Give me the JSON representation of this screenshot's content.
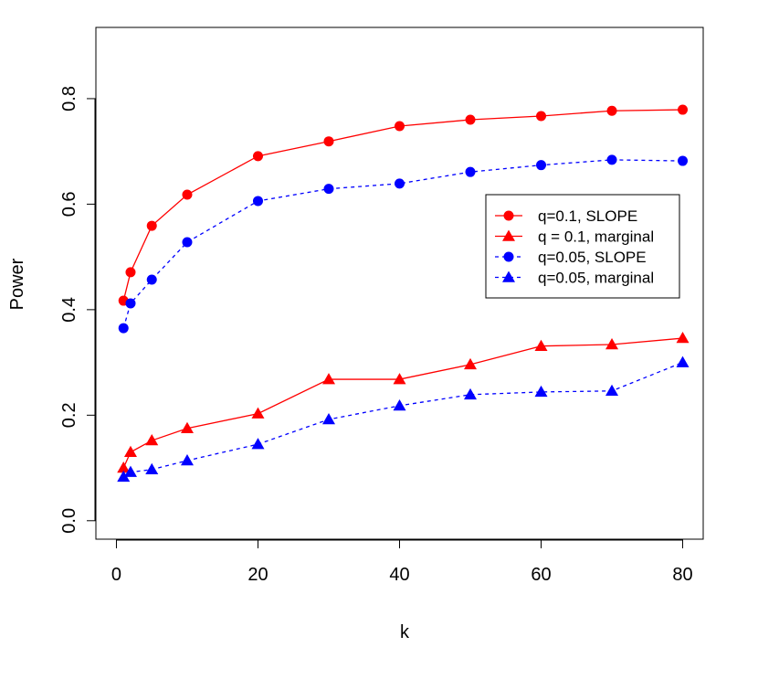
{
  "chart_data": {
    "type": "line",
    "title": "",
    "xlabel": "k",
    "ylabel": "Power",
    "xlim": [
      -2.9,
      82.9
    ],
    "ylim": [
      -0.035,
      0.935
    ],
    "xticks": [
      0,
      20,
      40,
      60,
      80
    ],
    "xtick_labels": [
      "0",
      "20",
      "40",
      "60",
      "80"
    ],
    "yticks": [
      0.0,
      0.2,
      0.4,
      0.6,
      0.8
    ],
    "ytick_labels": [
      "0.0",
      "0.2",
      "0.4",
      "0.6",
      "0.8"
    ],
    "grid": false,
    "legend_position": "right",
    "x": [
      1,
      2,
      5,
      10,
      20,
      30,
      40,
      50,
      60,
      70,
      80
    ],
    "series": [
      {
        "name": "q=0.1, SLOPE",
        "color": "#ff0000",
        "marker": "circle",
        "dash": "solid",
        "values": [
          0.417,
          0.471,
          0.559,
          0.618,
          0.691,
          0.719,
          0.748,
          0.76,
          0.767,
          0.777,
          0.779
        ]
      },
      {
        "name": "q = 0.1, marginal",
        "color": "#ff0000",
        "marker": "triangle",
        "dash": "solid",
        "values": [
          0.1,
          0.13,
          0.152,
          0.175,
          0.203,
          0.268,
          0.268,
          0.296,
          0.331,
          0.334,
          0.346
        ]
      },
      {
        "name": "q=0.05, SLOPE",
        "color": "#0000ff",
        "marker": "circle",
        "dash": "dashed",
        "values": [
          0.365,
          0.412,
          0.457,
          0.528,
          0.606,
          0.629,
          0.639,
          0.661,
          0.674,
          0.684,
          0.682
        ]
      },
      {
        "name": "q=0.05, marginal",
        "color": "#0000ff",
        "marker": "triangle",
        "dash": "dashed",
        "values": [
          0.083,
          0.092,
          0.097,
          0.114,
          0.145,
          0.192,
          0.218,
          0.239,
          0.244,
          0.246,
          0.3
        ]
      }
    ]
  }
}
